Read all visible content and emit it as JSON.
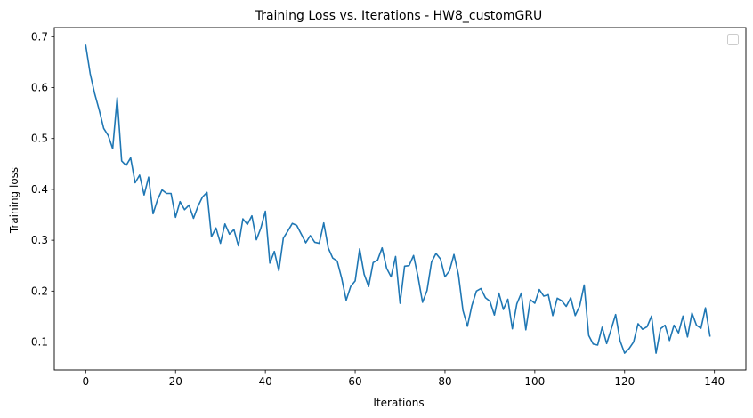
{
  "chart_data": {
    "type": "line",
    "title": "Training Loss vs. Iterations - HW8_customGRU",
    "xlabel": "Iterations",
    "ylabel": "Training loss",
    "xlim": [
      -7,
      147
    ],
    "ylim": [
      0.045,
      0.718
    ],
    "xticks": [
      0,
      20,
      40,
      60,
      80,
      100,
      120,
      140
    ],
    "yticks": [
      0.1,
      0.2,
      0.3,
      0.4,
      0.5,
      0.6,
      0.7
    ],
    "xtick_labels": [
      "0",
      "20",
      "40",
      "60",
      "80",
      "100",
      "120",
      "140"
    ],
    "ytick_labels": [
      "0.1",
      "0.2",
      "0.3",
      "0.4",
      "0.5",
      "0.6",
      "0.7"
    ],
    "legend": "upper right (empty)",
    "grid": false,
    "series": [
      {
        "color": "#1f77b4",
        "x": [
          0,
          1,
          2,
          3,
          4,
          5,
          6,
          7,
          8,
          9,
          10,
          11,
          12,
          13,
          14,
          15,
          16,
          17,
          18,
          19,
          20,
          21,
          22,
          23,
          24,
          25,
          26,
          27,
          28,
          29,
          30,
          31,
          32,
          33,
          34,
          35,
          36,
          37,
          38,
          39,
          40,
          41,
          42,
          43,
          44,
          45,
          46,
          47,
          48,
          49,
          50,
          51,
          52,
          53,
          54,
          55,
          56,
          57,
          58,
          59,
          60,
          61,
          62,
          63,
          64,
          65,
          66,
          67,
          68,
          69,
          70,
          71,
          72,
          73,
          74,
          75,
          76,
          77,
          78,
          79,
          80,
          81,
          82,
          83,
          84,
          85,
          86,
          87,
          88,
          89,
          90,
          91,
          92,
          93,
          94,
          95,
          96,
          97,
          98,
          99,
          100,
          101,
          102,
          103,
          104,
          105,
          106,
          107,
          108,
          109,
          110,
          111,
          112,
          113,
          114,
          115,
          116,
          117,
          118,
          119,
          120,
          121,
          122,
          123,
          124,
          125,
          126,
          127,
          128,
          129,
          130,
          131,
          132,
          133,
          134,
          135,
          136,
          137,
          138,
          139
        ],
        "y": [
          0.683,
          0.627,
          0.588,
          0.556,
          0.52,
          0.506,
          0.48,
          0.58,
          0.456,
          0.447,
          0.462,
          0.413,
          0.428,
          0.389,
          0.424,
          0.352,
          0.38,
          0.399,
          0.392,
          0.392,
          0.345,
          0.376,
          0.36,
          0.369,
          0.343,
          0.367,
          0.385,
          0.394,
          0.307,
          0.324,
          0.294,
          0.332,
          0.312,
          0.321,
          0.289,
          0.342,
          0.331,
          0.348,
          0.301,
          0.324,
          0.357,
          0.255,
          0.278,
          0.24,
          0.304,
          0.318,
          0.333,
          0.329,
          0.312,
          0.295,
          0.309,
          0.296,
          0.294,
          0.334,
          0.285,
          0.265,
          0.259,
          0.225,
          0.182,
          0.209,
          0.22,
          0.283,
          0.233,
          0.209,
          0.256,
          0.261,
          0.285,
          0.245,
          0.228,
          0.268,
          0.176,
          0.249,
          0.25,
          0.27,
          0.228,
          0.178,
          0.201,
          0.257,
          0.274,
          0.263,
          0.228,
          0.24,
          0.272,
          0.232,
          0.162,
          0.131,
          0.172,
          0.2,
          0.205,
          0.187,
          0.18,
          0.153,
          0.196,
          0.164,
          0.184,
          0.126,
          0.175,
          0.196,
          0.124,
          0.183,
          0.176,
          0.203,
          0.19,
          0.193,
          0.152,
          0.186,
          0.181,
          0.17,
          0.187,
          0.152,
          0.171,
          0.212,
          0.113,
          0.096,
          0.094,
          0.129,
          0.097,
          0.125,
          0.154,
          0.102,
          0.078,
          0.087,
          0.1,
          0.136,
          0.125,
          0.13,
          0.151,
          0.078,
          0.126,
          0.133,
          0.103,
          0.133,
          0.118,
          0.151,
          0.11,
          0.157,
          0.133,
          0.127,
          0.167,
          0.112
        ]
      }
    ]
  }
}
